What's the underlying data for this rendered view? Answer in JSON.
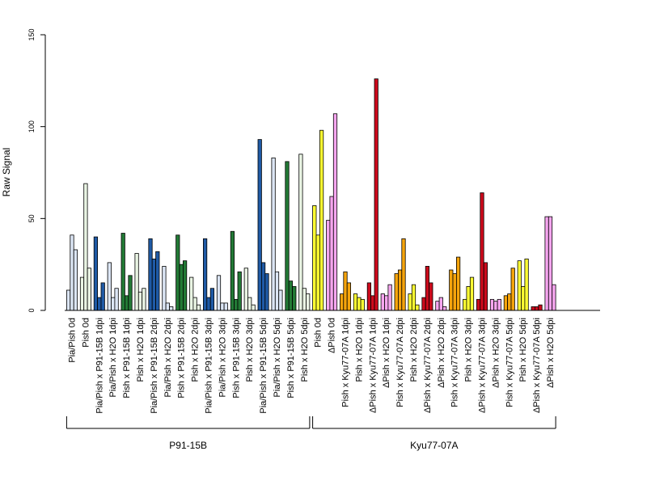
{
  "chart_data": {
    "type": "bar",
    "title": "",
    "ylabel": "Raw Signal",
    "xlabel": "",
    "ylim": [
      0,
      150
    ],
    "yticks": [
      0,
      50,
      100,
      150
    ],
    "grid": false,
    "legend": "none",
    "bars_per_group": 3,
    "groups": [
      {
        "label": "Pia/Pish 0d",
        "color": "#dce6f5",
        "values": [
          11,
          41,
          33
        ]
      },
      {
        "label": "Pish 0d",
        "color": "#eaf5e4",
        "values": [
          18,
          69,
          23
        ]
      },
      {
        "label": "Pia/Pish x P91-15B 1dpi",
        "color": "#1f5aa6",
        "values": [
          40,
          7,
          15
        ]
      },
      {
        "label": "Pia/Pish x H2O 1dpi",
        "color": "#dce6f5",
        "values": [
          26,
          7,
          12
        ]
      },
      {
        "label": "Pish x P91-15B 1dpi",
        "color": "#237a36",
        "values": [
          42,
          8,
          19
        ]
      },
      {
        "label": "Pish x H2O 1dpi",
        "color": "#eaf5e4",
        "values": [
          31,
          10,
          12
        ]
      },
      {
        "label": "Pia/Pish x P91-15B 2dpi",
        "color": "#1f5aa6",
        "values": [
          39,
          28,
          32
        ]
      },
      {
        "label": "Pia/Pish x H2O 2dpi",
        "color": "#dce6f5",
        "values": [
          24,
          4,
          2
        ]
      },
      {
        "label": "Pish x P91-15B 2dpi",
        "color": "#237a36",
        "values": [
          41,
          25,
          27
        ]
      },
      {
        "label": "Pish x H2O 2dpi",
        "color": "#eaf5e4",
        "values": [
          18,
          7,
          3
        ]
      },
      {
        "label": "Pia/Pish x P91-15B 3dpi",
        "color": "#1f5aa6",
        "values": [
          39,
          7,
          12
        ]
      },
      {
        "label": "Pia/Pish x H2O 3dpi",
        "color": "#dce6f5",
        "values": [
          19,
          4,
          4
        ]
      },
      {
        "label": "Pish x P91-15B 3dpi",
        "color": "#237a36",
        "values": [
          43,
          6,
          21
        ]
      },
      {
        "label": "Pish x H2O 3dpi",
        "color": "#eaf5e4",
        "values": [
          23,
          7,
          3
        ]
      },
      {
        "label": "Pia/Pish x P91-15B 5dpi",
        "color": "#1f5aa6",
        "values": [
          93,
          26,
          20
        ]
      },
      {
        "label": "Pia/Pish x H2O 5dpi",
        "color": "#dce6f5",
        "values": [
          83,
          21,
          11
        ]
      },
      {
        "label": "Pish x P91-15B 5dpi",
        "color": "#237a36",
        "values": [
          81,
          16,
          13
        ]
      },
      {
        "label": "Pish x H2O 5dpi",
        "color": "#eaf5e4",
        "values": [
          85,
          12,
          9
        ]
      },
      {
        "label": "Pish 0d",
        "color": "#ffff33",
        "values": [
          57,
          41,
          98
        ]
      },
      {
        "label": "ΔPish 0d",
        "color": "#f6a6ef",
        "values": [
          49,
          62,
          107
        ]
      },
      {
        "label": "Pish x Kyu77-07A 1dpi",
        "color": "#f5a40c",
        "values": [
          9,
          21,
          15
        ]
      },
      {
        "label": "Pish x H2O 1dpi",
        "color": "#ffff33",
        "values": [
          9,
          7,
          6
        ]
      },
      {
        "label": "ΔPish x Kyu77-07A 1dpi",
        "color": "#cc0a1c",
        "values": [
          15,
          8,
          126
        ]
      },
      {
        "label": "ΔPish x H2O 1dpi",
        "color": "#f6a6ef",
        "values": [
          9,
          8,
          14
        ]
      },
      {
        "label": "Pish x Kyu77-07A 2dpi",
        "color": "#f5a40c",
        "values": [
          20,
          22,
          39
        ]
      },
      {
        "label": "Pish x H2O 2dpi",
        "color": "#ffff33",
        "values": [
          9,
          14,
          3
        ]
      },
      {
        "label": "ΔPish x Kyu77-07A 2dpi",
        "color": "#cc0a1c",
        "values": [
          7,
          24,
          15
        ]
      },
      {
        "label": "ΔPish x H2O 2dpi",
        "color": "#f6a6ef",
        "values": [
          5,
          7,
          2
        ]
      },
      {
        "label": "Pish x Kyu77-07A 3dpi",
        "color": "#f5a40c",
        "values": [
          22,
          20,
          29
        ]
      },
      {
        "label": "Pish x H2O 3dpi",
        "color": "#ffff33",
        "values": [
          6,
          13,
          18
        ]
      },
      {
        "label": "ΔPish x Kyu77-07A 3dpi",
        "color": "#cc0a1c",
        "values": [
          6,
          64,
          26
        ]
      },
      {
        "label": "ΔPish x H2O 3dpi",
        "color": "#f6a6ef",
        "values": [
          6,
          5,
          6
        ]
      },
      {
        "label": "Pish x Kyu77-07A 5dpi",
        "color": "#f5a40c",
        "values": [
          8,
          9,
          23
        ]
      },
      {
        "label": "Pish x H2O 5dpi",
        "color": "#ffff33",
        "values": [
          27,
          13,
          28
        ]
      },
      {
        "label": "ΔPish x Kyu77-07A 5dpi",
        "color": "#cc0a1c",
        "values": [
          2,
          2,
          3
        ]
      },
      {
        "label": "ΔPish x H2O 5dpi",
        "color": "#f6a6ef",
        "values": [
          51,
          51,
          14
        ]
      }
    ],
    "sections": [
      {
        "label": "P91-15B",
        "first_group": 0,
        "last_group": 17
      },
      {
        "label": "Kyu77-07A",
        "first_group": 18,
        "last_group": 35
      }
    ]
  }
}
